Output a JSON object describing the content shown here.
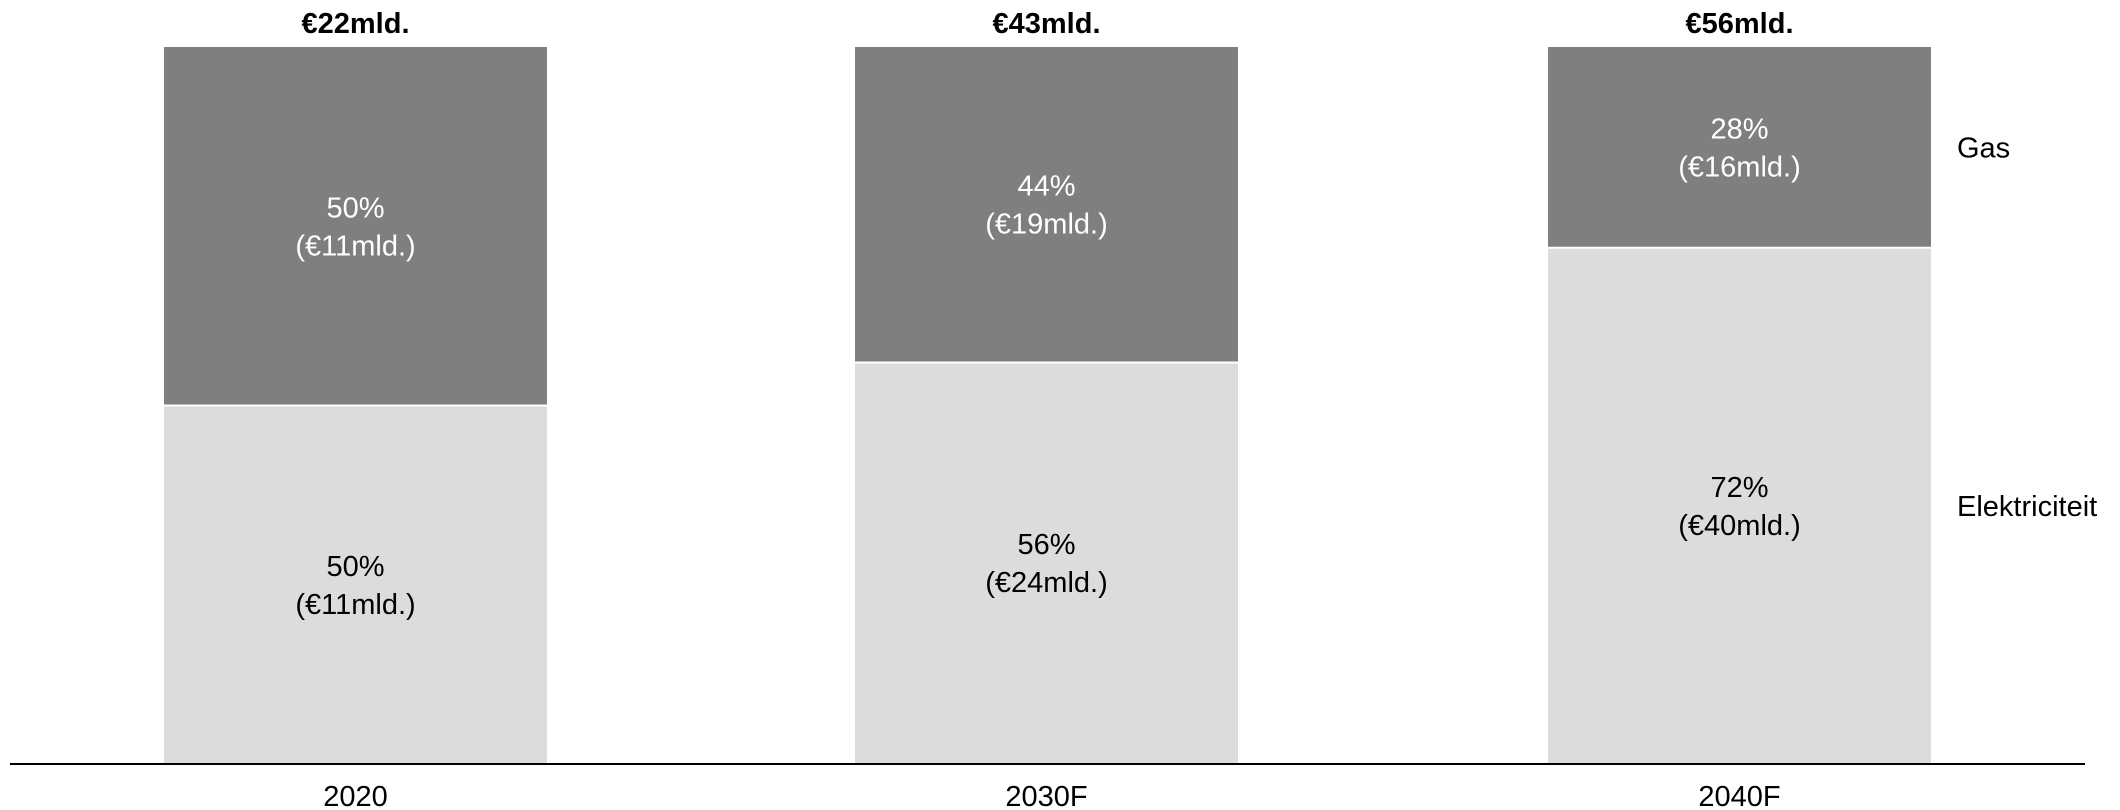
{
  "chart_data": {
    "type": "bar",
    "stacked": true,
    "title": "",
    "xlabel": "",
    "ylabel": "",
    "categories": [
      "2020",
      "2030F",
      "2040F"
    ],
    "totals": [
      22,
      43,
      56
    ],
    "total_labels": [
      "€22mld.",
      "€43mld.",
      "€56mld."
    ],
    "series": [
      {
        "name": "Elektriciteit",
        "color": "#dcdcdc",
        "text_color": "#000000",
        "percents": [
          50,
          56,
          72
        ],
        "values": [
          11,
          24,
          40
        ],
        "labels": [
          [
            "50%",
            "(€11mld.)"
          ],
          [
            "56%",
            "(€24mld.)"
          ],
          [
            "72%",
            "(€40mld.)"
          ]
        ]
      },
      {
        "name": "Gas",
        "color": "#7f7f7f",
        "text_color": "#ffffff",
        "percents": [
          50,
          44,
          28
        ],
        "values": [
          11,
          19,
          16
        ],
        "labels": [
          [
            "50%",
            "(€11mld.)"
          ],
          [
            "44%",
            "(€19mld.)"
          ],
          [
            "28%",
            "(€16mld.)"
          ]
        ]
      }
    ],
    "grid": false,
    "legend_position": "right"
  }
}
